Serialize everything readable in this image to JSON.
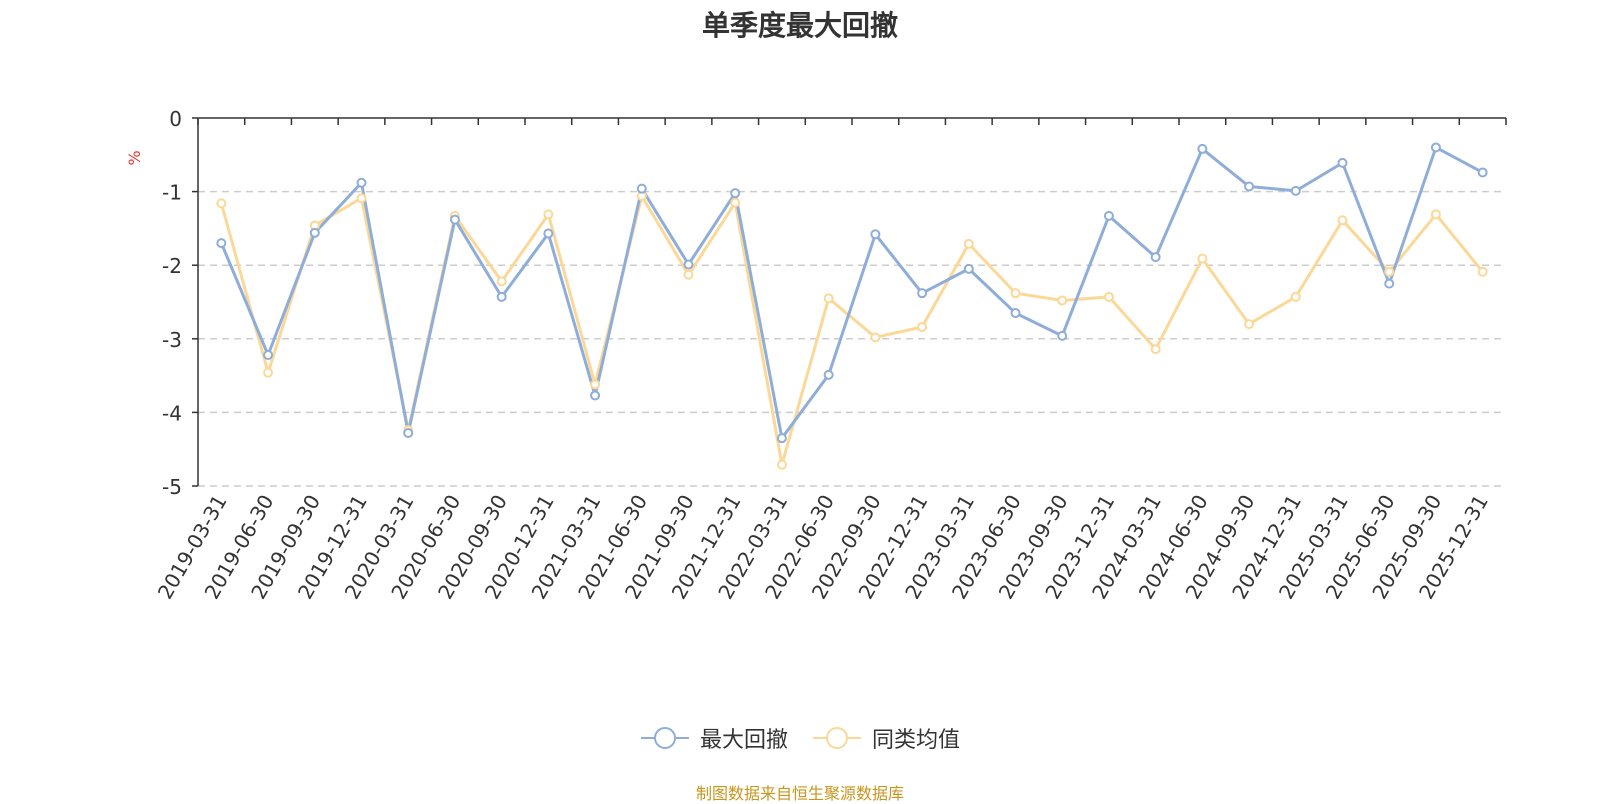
{
  "chart_data": {
    "type": "line",
    "title": "单季度最大回撤",
    "ylabel": "%",
    "ylim": [
      -5,
      0
    ],
    "y_ticks": [
      0,
      -1,
      -2,
      -3,
      -4,
      -5
    ],
    "grid": true,
    "legend_position": "bottom",
    "categories": [
      "2019-03-31",
      "2019-06-30",
      "2019-09-30",
      "2019-12-31",
      "2020-03-31",
      "2020-06-30",
      "2020-09-30",
      "2020-12-31",
      "2021-03-31",
      "2021-06-30",
      "2021-09-30",
      "2021-12-31",
      "2022-03-31",
      "2022-06-30",
      "2022-09-30",
      "2022-12-31",
      "2023-03-31",
      "2023-06-30",
      "2023-09-30",
      "2023-12-31",
      "2024-03-31",
      "2024-06-30",
      "2024-09-30",
      "2024-12-31",
      "2025-03-31",
      "2025-06-30",
      "2025-09-30",
      "2025-12-31"
    ],
    "series": [
      {
        "name": "最大回撤",
        "color": "#8eadd9",
        "values": [
          -1.7,
          -3.22,
          -1.56,
          -0.88,
          -4.28,
          -1.38,
          -2.43,
          -1.57,
          -3.77,
          -0.96,
          -1.99,
          -1.02,
          -4.35,
          -3.49,
          -1.58,
          -2.38,
          -2.05,
          -2.65,
          -2.96,
          -1.33,
          -1.89,
          -0.42,
          -0.93,
          -0.99,
          -0.61,
          -2.25,
          -0.4,
          -0.74
        ]
      },
      {
        "name": "同类均值",
        "color": "#fbd897",
        "values": [
          -1.16,
          -3.46,
          -1.46,
          -1.09,
          -4.24,
          -1.33,
          -2.22,
          -1.31,
          -3.62,
          -1.06,
          -2.13,
          -1.15,
          -4.71,
          -2.45,
          -2.98,
          -2.84,
          -1.71,
          -2.38,
          -2.48,
          -2.43,
          -3.14,
          -1.91,
          -2.8,
          -2.43,
          -1.39,
          -2.09,
          -1.31,
          -2.09
        ]
      }
    ]
  },
  "legend": {
    "series1": "最大回撤",
    "series2": "同类均值"
  },
  "source_text": "制图数据来自恒生聚源数据库",
  "colors": {
    "title": "#333333",
    "axis_unit": "#e53935",
    "source": "#c8961e",
    "grid": "#cccccc"
  }
}
